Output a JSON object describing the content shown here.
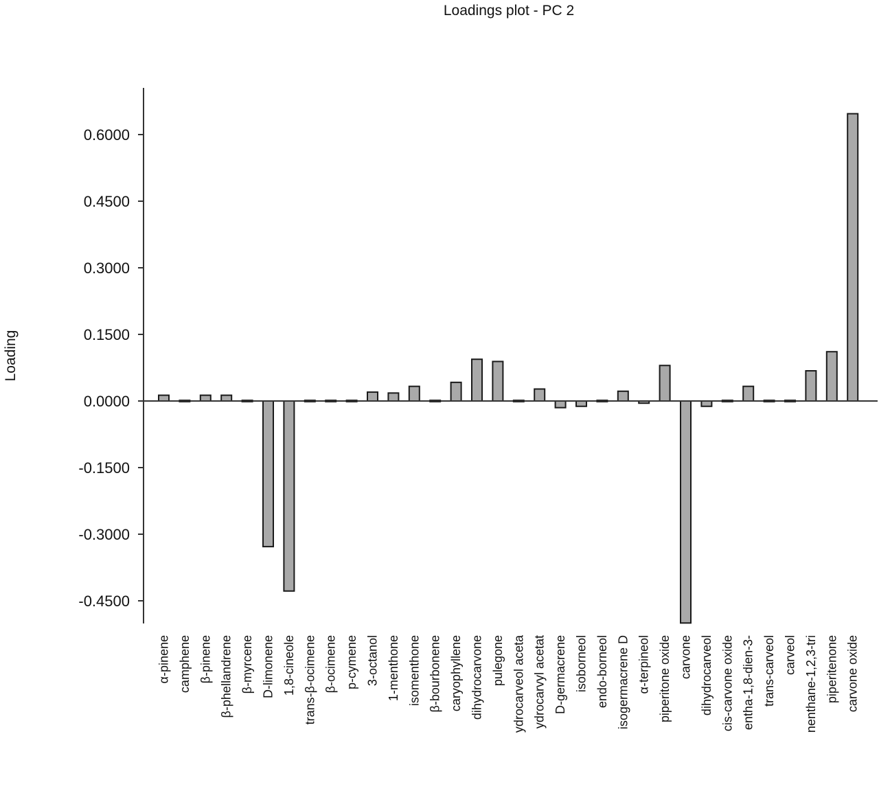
{
  "chart_data": {
    "type": "bar",
    "title": "Loadings plot - PC 2",
    "xlabel": "",
    "ylabel": "Loading",
    "ylim": [
      -0.5,
      0.7
    ],
    "yticks": [
      0.6,
      0.45,
      0.3,
      0.15,
      0.0,
      -0.15,
      -0.3,
      -0.45
    ],
    "ytick_labels": [
      "0.6000",
      "0.4500",
      "0.3000",
      "0.1500",
      "0.0000",
      "-0.1500",
      "-0.3000",
      "-0.4500"
    ],
    "bar_color": "#a9a9a9",
    "categories": [
      "α-pinene",
      "camphene",
      "β-pinene",
      "β-phellandrene",
      "β-myrcene",
      "D-limonene",
      "1,8-cineole",
      "trans-β-ocimene",
      "β-ocimene",
      "p-cymene",
      "3-octanol",
      "1-menthone",
      "isomenthone",
      "β-bourbonene",
      "caryophyllene",
      "dihydrocarvone",
      "pulegone",
      "ydrocarveol aceta",
      "ydrocarvyl acetat",
      "D-germacrene",
      "isoborneol",
      "endo-borneol",
      "isogermacrene D",
      "α-terpineol",
      "piperitone oxide",
      "carvone",
      "dihydrocarveol",
      "cis-carvone oxide",
      "entha-1,8-dien-3-",
      "trans-carveol",
      "carveol",
      "nenthane-1,2,3-tri",
      "piperitenone",
      "carvone oxide"
    ],
    "values": [
      0.013,
      0.0,
      0.013,
      0.013,
      0.002,
      -0.328,
      -0.428,
      0.0,
      0.0,
      0.0,
      0.02,
      0.018,
      0.033,
      0.0,
      0.042,
      0.094,
      0.089,
      -0.003,
      0.027,
      -0.015,
      -0.012,
      0.0,
      0.022,
      -0.005,
      0.08,
      -0.5,
      -0.012,
      -0.003,
      0.033,
      0.0,
      0.0,
      0.068,
      0.111,
      0.647
    ]
  }
}
